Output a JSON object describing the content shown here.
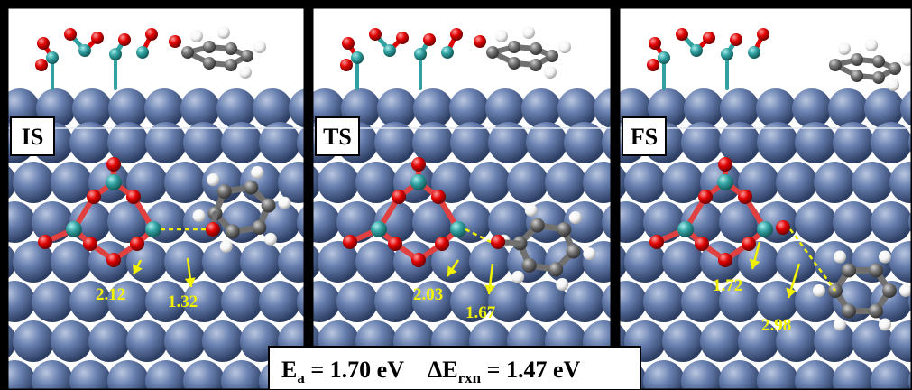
{
  "panels": [
    {
      "label": "IS",
      "distances": [
        "2.12",
        "1.32"
      ]
    },
    {
      "label": "TS",
      "distances": [
        "2.03",
        "1.67"
      ]
    },
    {
      "label": "FS",
      "distances": [
        "1.72",
        "2.98"
      ]
    }
  ],
  "energy": {
    "ea_symbol": "E",
    "ea_sub": "a",
    "ea_value": " = 1.70 eV",
    "erxn_symbol": "ΔE",
    "erxn_sub": "rxn",
    "erxn_value": " = 1.47 eV"
  },
  "colors": {
    "surface_atom": "#5a71a0",
    "oxygen": "#e00000",
    "metal": "#30a0a0",
    "carbon": "#707070",
    "hydrogen": "#ffffff",
    "annotation": "#f2f200"
  }
}
